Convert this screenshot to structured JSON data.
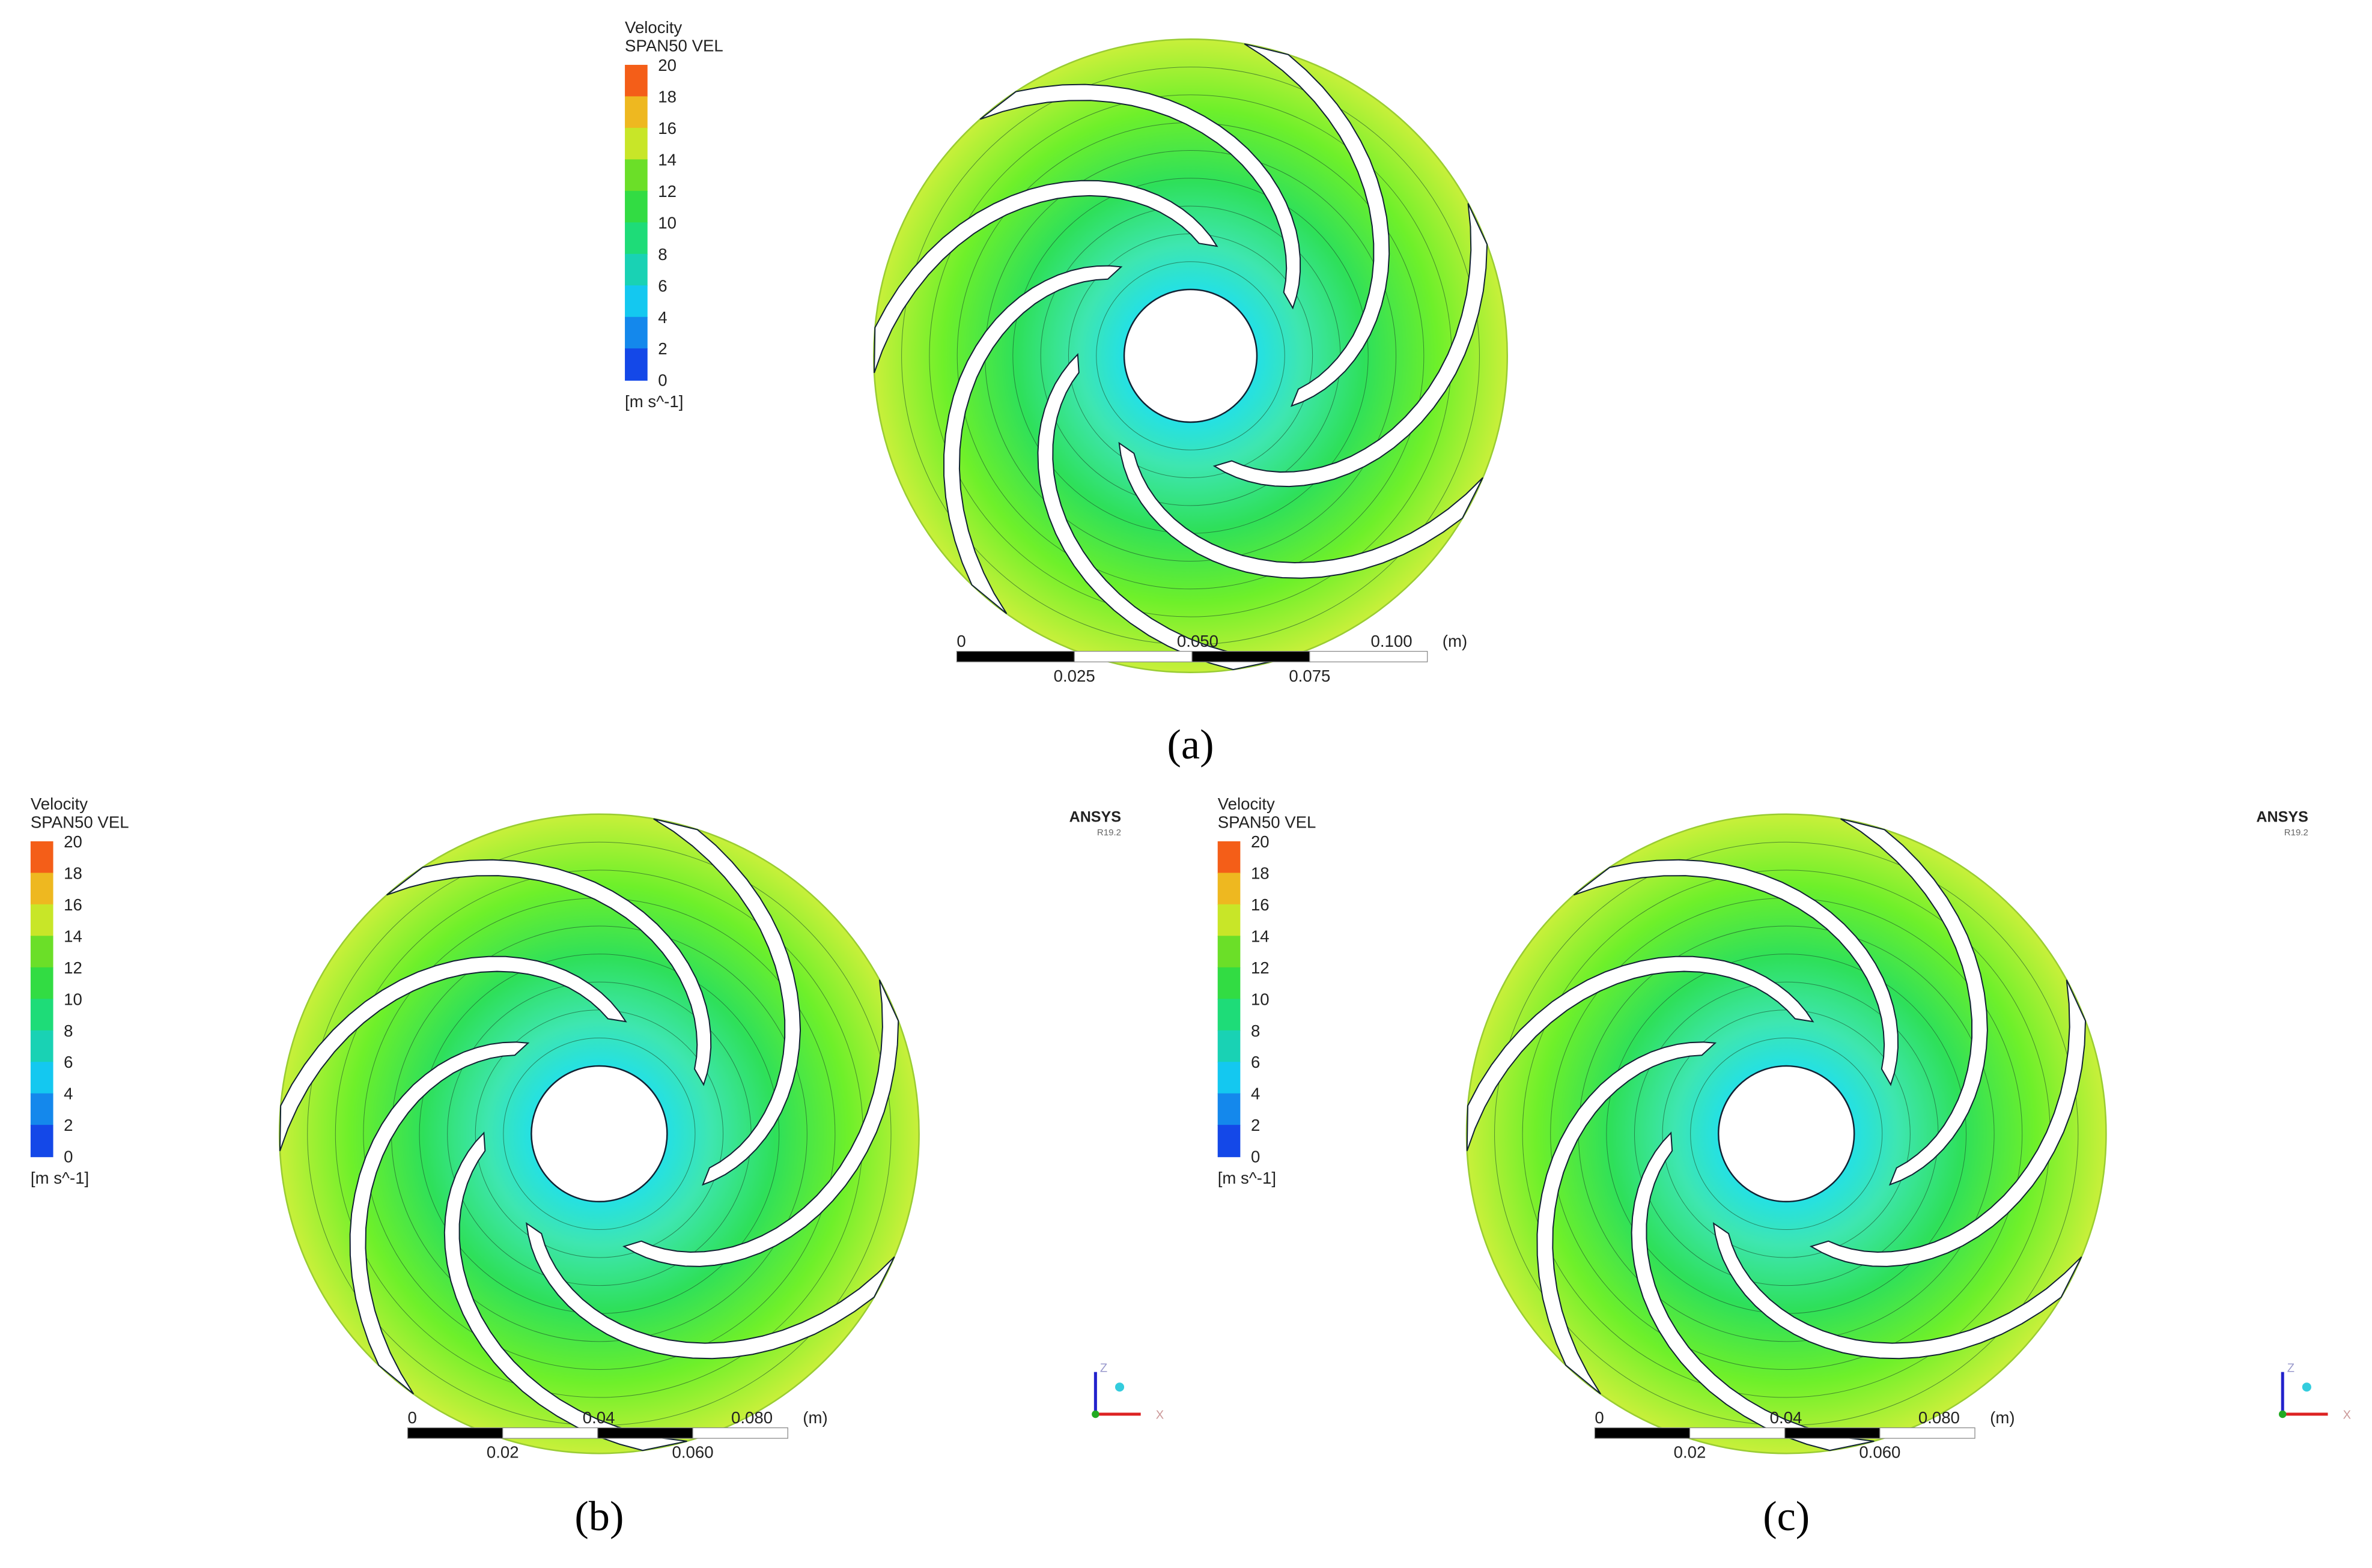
{
  "panels": [
    {
      "caption": "(a)",
      "legend": {
        "title": "Velocity",
        "variable": "SPAN50 VEL",
        "ticks": [
          20,
          18,
          16,
          14,
          12,
          10,
          8,
          6,
          4,
          2,
          0
        ],
        "unit": "[m s^-1]"
      },
      "scale_bar": {
        "top": [
          "0",
          "0.050",
          "0.100"
        ],
        "unit": "(m)",
        "bottom": [
          "0.025",
          "0.075"
        ]
      }
    },
    {
      "caption": "(b)",
      "legend": {
        "title": "Velocity",
        "variable": "SPAN50 VEL",
        "ticks": [
          20,
          18,
          16,
          14,
          12,
          10,
          8,
          6,
          4,
          2,
          0
        ],
        "unit": "[m s^-1]"
      },
      "scale_bar": {
        "top": [
          "0",
          "0.04",
          "0.080"
        ],
        "unit": "(m)",
        "bottom": [
          "0.02",
          "0.060"
        ]
      },
      "brand": {
        "name": "ANSYS",
        "version": "R19.2"
      },
      "axes": {
        "vertical": "Z",
        "horizontal": "X"
      }
    },
    {
      "caption": "(c)",
      "legend": {
        "title": "Velocity",
        "variable": "SPAN50 VEL",
        "ticks": [
          20,
          18,
          16,
          14,
          12,
          10,
          8,
          6,
          4,
          2,
          0
        ],
        "unit": "[m s^-1]"
      },
      "scale_bar": {
        "top": [
          "0",
          "0.04",
          "0.080"
        ],
        "unit": "(m)",
        "bottom": [
          "0.02",
          "0.060"
        ]
      },
      "brand": {
        "name": "ANSYS",
        "version": "R19.2"
      },
      "axes": {
        "vertical": "Z",
        "horizontal": "X"
      }
    }
  ]
}
